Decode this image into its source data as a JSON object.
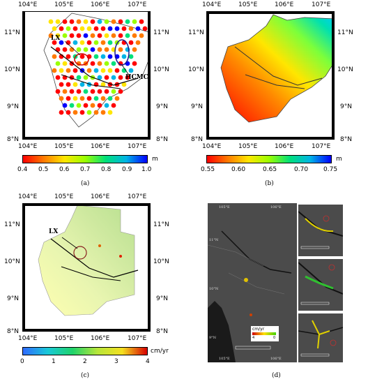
{
  "panels": {
    "a": {
      "caption": "(a)",
      "lon_top": [
        "104°E",
        "105°E",
        "106°E",
        "107°E"
      ],
      "lon_bottom": [
        "104°E",
        "105°E",
        "106°E",
        "107°E"
      ],
      "lat_left": [
        "11°N",
        "10°N",
        "9°N",
        "8°N"
      ],
      "lat_right": [
        "11°N",
        "10°N",
        "9°N",
        "8°N"
      ],
      "labels": {
        "lx": "LX",
        "hcmc": "HCMC"
      },
      "colorbar": {
        "ticks": [
          "0.4",
          "0.5",
          "0.6",
          "0.7",
          "0.8",
          "0.9",
          "1.0"
        ],
        "unit": "m",
        "min": 0.4,
        "max": 1.0
      }
    },
    "b": {
      "caption": "(b)",
      "lon_top": [
        "104°E",
        "105°E",
        "106°E",
        "107°E"
      ],
      "lon_bottom": [
        "104°E",
        "105°E",
        "106°E",
        "107°E"
      ],
      "lat_left": [
        "11°N",
        "10°N",
        "9°N",
        "8°N"
      ],
      "lat_right": [
        "11°N",
        "10°N",
        "9°N",
        "8°N"
      ],
      "colorbar": {
        "ticks": [
          "0.55",
          "0.60",
          "0.65",
          "0.70",
          "0.75"
        ],
        "unit": "m",
        "min": 0.55,
        "max": 0.75
      }
    },
    "c": {
      "caption": "(c)",
      "lon_top": [
        "104°E",
        "105°E",
        "106°E",
        "107°E"
      ],
      "lon_bottom": [
        "104°E",
        "105°E",
        "106°E",
        "107°E"
      ],
      "lat_left": [
        "11°N",
        "10°N",
        "9°N",
        "8°N"
      ],
      "lat_right": [
        "11°N",
        "10°N",
        "9°N",
        "8°N"
      ],
      "labels": {
        "lx": "LX"
      },
      "colorbar": {
        "ticks": [
          "0",
          "1",
          "2",
          "3",
          "4"
        ],
        "unit": "cm/yr",
        "min": 0,
        "max": 4
      }
    },
    "d": {
      "caption": "(d)",
      "lon_top": [
        "105°E",
        "106°E"
      ],
      "lon_bottom": [
        "105°E",
        "106°E"
      ],
      "lat_left": [
        "11°N",
        "10°N",
        "9°N"
      ],
      "legend": {
        "unit": "cm/yr",
        "min_label": "4",
        "max_label": "0"
      }
    }
  },
  "colors": {
    "jet_rev": [
      "#ff0000",
      "#ff7a00",
      "#ffe600",
      "#9bff00",
      "#00e07a",
      "#00b4e6",
      "#0000ff"
    ],
    "sat": [
      "#2f6bff",
      "#19c9d8",
      "#1fd36a",
      "#b7e63a",
      "#f4e020",
      "#d80000"
    ],
    "dark_bg": "#4b4b4b"
  }
}
